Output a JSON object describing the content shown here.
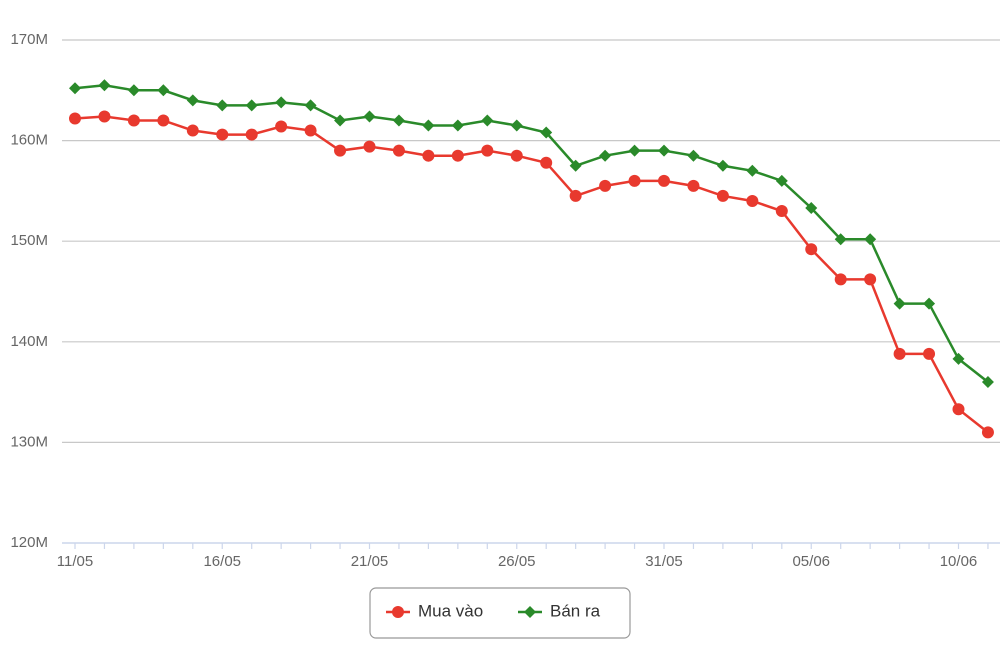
{
  "chart_data": {
    "type": "line",
    "categories": [
      "11/05",
      null,
      null,
      null,
      null,
      "16/05",
      null,
      null,
      null,
      null,
      "21/05",
      null,
      null,
      null,
      null,
      "26/05",
      null,
      null,
      null,
      null,
      "31/05",
      null,
      null,
      null,
      null,
      "05/06",
      null,
      null,
      null,
      null,
      "10/06",
      null
    ],
    "series": [
      {
        "name": "Mua vào",
        "color": "#e8392e",
        "marker": "circle",
        "values": [
          162.2,
          162.4,
          162.0,
          162.0,
          161.0,
          160.6,
          160.6,
          161.4,
          161.0,
          159.0,
          159.4,
          159.0,
          158.5,
          158.5,
          159.0,
          158.5,
          157.8,
          154.5,
          155.5,
          156.0,
          156.0,
          155.5,
          154.5,
          154.0,
          153.0,
          149.2,
          146.2,
          146.2,
          138.8,
          138.8,
          133.3,
          131.0
        ]
      },
      {
        "name": "Bán ra",
        "color": "#2a8a2a",
        "marker": "diamond",
        "values": [
          165.2,
          165.5,
          165.0,
          165.0,
          164.0,
          163.5,
          163.5,
          163.8,
          163.5,
          162.0,
          162.4,
          162.0,
          161.5,
          161.5,
          162.0,
          161.5,
          160.8,
          157.5,
          158.5,
          159.0,
          159.0,
          158.5,
          157.5,
          157.0,
          156.0,
          153.3,
          150.2,
          150.2,
          143.8,
          143.8,
          138.3,
          136.0
        ]
      }
    ],
    "ylim": [
      120,
      170
    ],
    "yticks": [
      {
        "value": 120,
        "label": "120M"
      },
      {
        "value": 130,
        "label": "130M"
      },
      {
        "value": 140,
        "label": "140M"
      },
      {
        "value": 150,
        "label": "150M"
      },
      {
        "value": 160,
        "label": "160M"
      },
      {
        "value": 170,
        "label": "170M"
      }
    ],
    "grid": true,
    "legend": "bottom"
  }
}
